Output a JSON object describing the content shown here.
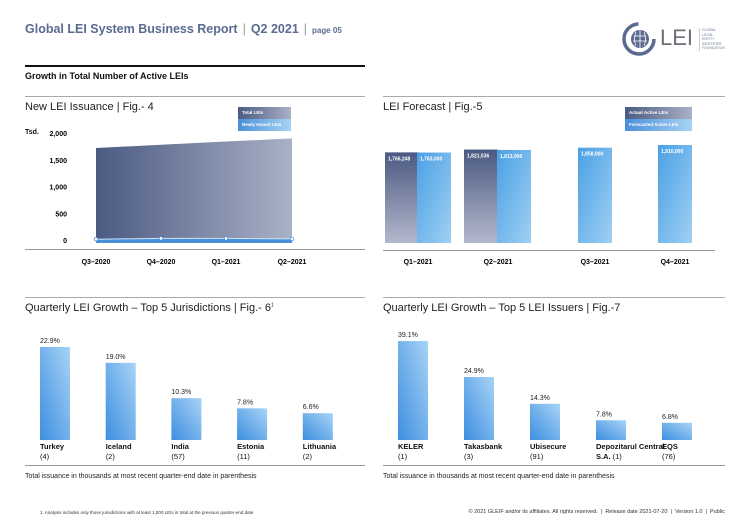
{
  "header": {
    "title": "Global LEI System Business Report",
    "quarter": "Q2 2021",
    "page": "page 05",
    "logo_text": "LEI",
    "logo_subtext": "GLOBAL LEGAL ENTITY IDENTIFIER FOUNDATION"
  },
  "section_title": "Growth in Total Number of Active LEIs",
  "chart_data": [
    {
      "type": "area",
      "title": "New LEI Issuance | Fig.- 4",
      "ylabel": "Tsd.",
      "ylim": [
        0,
        2000
      ],
      "yticks": [
        "2,000",
        "1,500",
        "1,000",
        "500",
        "0"
      ],
      "categories": [
        "Q3–2020",
        "Q4–2020",
        "Q1–2021",
        "Q2–2021"
      ],
      "series": [
        {
          "name": "Total LEIs",
          "values": [
            1720,
            1780,
            1840,
            1900
          ],
          "color": "#4b5a82"
        },
        {
          "name": "Newly Issued LEIs",
          "values": [
            15,
            30,
            30,
            20
          ],
          "color": "#4a90d9"
        }
      ],
      "legend": "top-right"
    },
    {
      "type": "bar",
      "title": "LEI Forecast | Fig.-5",
      "categories": [
        "Q1–2021",
        "Q2–2021",
        "Q3–2021",
        "Q4–2021"
      ],
      "series": [
        {
          "name": "Actual Active LEIs",
          "values": [
            1766248,
            1821536,
            null,
            null
          ],
          "labels": [
            "1,766,248",
            "1,821,536",
            "",
            ""
          ],
          "color": "#4b5a82"
        },
        {
          "name": "Forecasted Active LEIs",
          "values": [
            1763000,
            1813000,
            1858000,
            1910000
          ],
          "labels": [
            "1,763,000",
            "1,813,000",
            "1,858,000",
            "1,910,000"
          ],
          "color": "#4aa3e6"
        }
      ],
      "legend": "top-right"
    },
    {
      "type": "bar",
      "title": "Quarterly LEI Growth – Top 5 Jurisdictions | Fig.- 6",
      "title_sup": "1",
      "categories": [
        "Turkey",
        "Iceland",
        "India",
        "Estonia",
        "Lithuania"
      ],
      "values": [
        22.9,
        19.0,
        10.3,
        7.8,
        6.6
      ],
      "labels": [
        "22.9%",
        "19.0%",
        "10.3%",
        "7.8%",
        "6.6%"
      ],
      "sub": [
        "(4)",
        "(2)",
        "(57)",
        "(11)",
        "(2)"
      ],
      "note": "Total issuance in thousands at most recent quarter-end date in parenthesis"
    },
    {
      "type": "bar",
      "title": "Quarterly LEI Growth – Top 5 LEI Issuers | Fig.-7",
      "categories": [
        "KELER",
        "Takasbank",
        "Ubisecure",
        "Depozitarul Central S.A.",
        "EQS"
      ],
      "values": [
        39.1,
        24.9,
        14.3,
        7.8,
        6.8
      ],
      "labels": [
        "39.1%",
        "24.9%",
        "14.3%",
        "7.8%",
        "6.8%"
      ],
      "sub": [
        "(1)",
        "(3)",
        "(91)",
        "(1)",
        "(76)"
      ],
      "note": "Total issuance in thousands at most recent quarter-end date in parenthesis"
    }
  ],
  "footer": {
    "footnote": "1. Analysis includes only those jurisdictions with at least 1,000 LEIs in total at the previous quarter-end date",
    "copyright": "© 2021 GLEIF and/or its affiliates. All rights reserved.  |  Release date 2021-07-20  |  Version 1.0  |  Public"
  }
}
